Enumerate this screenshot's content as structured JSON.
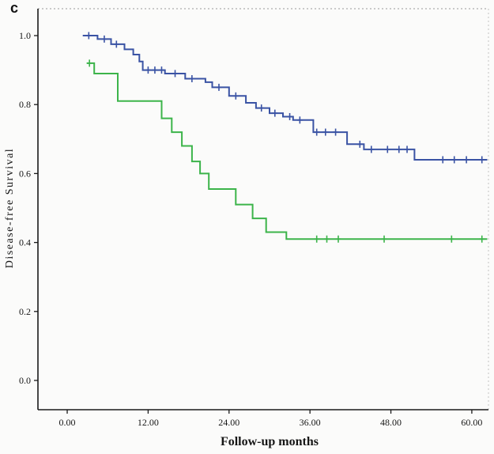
{
  "figure": {
    "panel_label": "c"
  },
  "chart_data": {
    "type": "line",
    "subtype": "kaplan_meier_step_survival",
    "title": "",
    "xlabel": "Follow-up months",
    "ylabel": "Disease-free Survival",
    "grid": false,
    "legend": "none",
    "frame": {
      "solid_sides": [
        "left",
        "bottom"
      ],
      "dotted_sides": [
        "top",
        "right"
      ]
    },
    "x_axis": {
      "ticks": [
        0,
        12,
        24,
        36,
        48,
        60
      ],
      "tick_labels": [
        "0.00",
        "12.00",
        "24.00",
        "36.00",
        "48.00",
        "60.00"
      ],
      "range": [
        -4.34,
        62.47
      ]
    },
    "y_axis": {
      "ticks": [
        0.0,
        0.2,
        0.4,
        0.6,
        0.8,
        1.0
      ],
      "tick_labels": [
        "0.0",
        "0.2",
        "0.4",
        "0.6",
        "0.8",
        "1.0"
      ],
      "range": [
        -0.0849,
        1.078
      ]
    },
    "end_time": 62.3,
    "series": [
      {
        "name": "group-blue",
        "color": "#3A53A4",
        "steps": [
          [
            2.3,
            1.0
          ],
          [
            4.5,
            0.99
          ],
          [
            6.5,
            0.975
          ],
          [
            8.5,
            0.96
          ],
          [
            9.8,
            0.945
          ],
          [
            10.7,
            0.925
          ],
          [
            11.2,
            0.9
          ],
          [
            14.5,
            0.89
          ],
          [
            17.5,
            0.875
          ],
          [
            20.5,
            0.865
          ],
          [
            21.5,
            0.85
          ],
          [
            24.0,
            0.825
          ],
          [
            26.5,
            0.805
          ],
          [
            28.0,
            0.79
          ],
          [
            30.0,
            0.775
          ],
          [
            32.0,
            0.765
          ],
          [
            33.5,
            0.755
          ],
          [
            36.5,
            0.72
          ],
          [
            41.5,
            0.685
          ],
          [
            44.0,
            0.67
          ],
          [
            51.5,
            0.64
          ]
        ],
        "censor_times": [
          3.2,
          5.5,
          7.3,
          12.0,
          13.0,
          14.0,
          16.0,
          18.5,
          22.5,
          25.0,
          28.8,
          30.8,
          33.0,
          34.5,
          37.0,
          38.3,
          39.8,
          43.4,
          45.1,
          47.5,
          49.2,
          50.4,
          55.7,
          57.4,
          59.2,
          61.5
        ]
      },
      {
        "name": "group-green",
        "color": "#3CB44A",
        "steps": [
          [
            2.9,
            0.92
          ],
          [
            4.0,
            0.89
          ],
          [
            7.5,
            0.81
          ],
          [
            14.0,
            0.76
          ],
          [
            15.5,
            0.72
          ],
          [
            17.0,
            0.68
          ],
          [
            18.5,
            0.635
          ],
          [
            19.7,
            0.6
          ],
          [
            21.0,
            0.555
          ],
          [
            25.0,
            0.51
          ],
          [
            27.5,
            0.47
          ],
          [
            29.5,
            0.43
          ],
          [
            32.5,
            0.41
          ]
        ],
        "censor_times": [
          3.3,
          37.0,
          38.5,
          40.2,
          47.0,
          57.0,
          61.5
        ]
      }
    ]
  }
}
